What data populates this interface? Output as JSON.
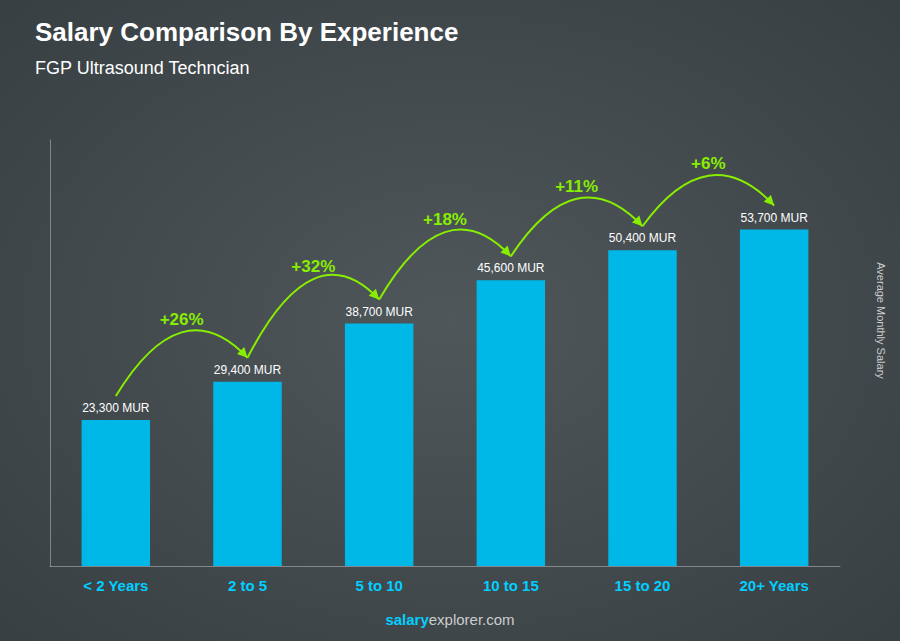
{
  "chart_data": {
    "type": "bar",
    "title": "Salary Comparison By Experience",
    "subtitle": "FGP Ultrasound Techncian",
    "categories": [
      "< 2 Years",
      "2 to 5",
      "5 to 10",
      "10 to 15",
      "15 to 20",
      "20+ Years"
    ],
    "values": [
      23300,
      29400,
      38700,
      45600,
      50400,
      53700
    ],
    "value_labels": [
      "23,300 MUR",
      "29,400 MUR",
      "38,700 MUR",
      "45,600 MUR",
      "50,400 MUR",
      "53,700 MUR"
    ],
    "data_labels": true,
    "color": "#00b8e8",
    "ylabel": "Average Monthly Salary",
    "annotations": [
      "+26%",
      "+32%",
      "+18%",
      "+11%",
      "+6%"
    ],
    "watermark": [
      "salary",
      "explorer.com"
    ],
    "ylim": [
      0,
      68000
    ],
    "tick_labels": "x",
    "grid": false
  }
}
